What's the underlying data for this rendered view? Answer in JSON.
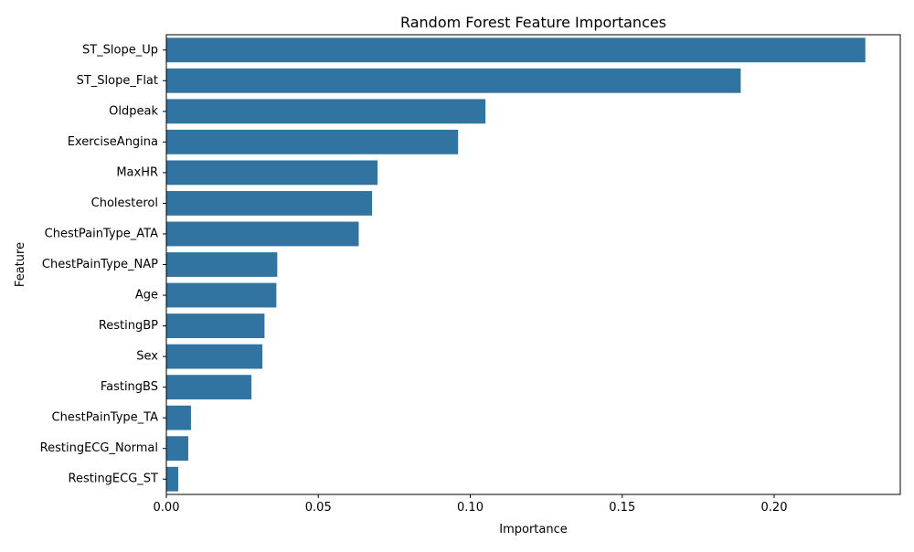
{
  "chart_data": {
    "type": "bar",
    "orientation": "horizontal",
    "title": "Random Forest Feature Importances",
    "xlabel": "Importance",
    "ylabel": "Feature",
    "xlim": [
      0,
      0.2415
    ],
    "x_ticks": [
      0.0,
      0.05,
      0.1,
      0.15,
      0.2
    ],
    "x_tick_labels": [
      "0.00",
      "0.05",
      "0.10",
      "0.15",
      "0.20"
    ],
    "grid": false,
    "legend": "none",
    "bar_color": "#3274a1",
    "categories": [
      "ST_Slope_Up",
      "ST_Slope_Flat",
      "Oldpeak",
      "ExerciseAngina",
      "MaxHR",
      "Cholesterol",
      "ChestPainType_ATA",
      "ChestPainType_NAP",
      "Age",
      "RestingBP",
      "Sex",
      "FastingBS",
      "ChestPainType_TA",
      "RestingECG_Normal",
      "RestingECG_ST"
    ],
    "values": [
      0.23,
      0.189,
      0.105,
      0.096,
      0.0695,
      0.0677,
      0.0633,
      0.0365,
      0.0362,
      0.0323,
      0.0316,
      0.028,
      0.0081,
      0.0072,
      0.0039
    ]
  }
}
